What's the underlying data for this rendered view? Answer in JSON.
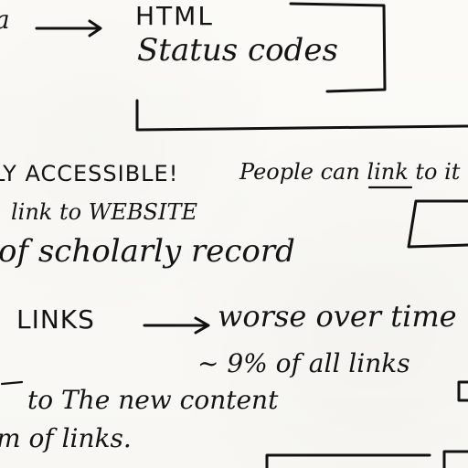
{
  "lines": {
    "top_left_fragment": "a",
    "html": "HTML",
    "status_codes": "Status codes",
    "line1_caps": "LY ACCESSIBLE!",
    "line1_people": "People can link to it",
    "line2": "link to WEBSITE",
    "line3": "of scholarly record",
    "line4_caps": "LINKS",
    "line4_rest": "worse over time",
    "line5": "~ 9% of all links",
    "line6": "to The new content",
    "line7": "m of links."
  }
}
